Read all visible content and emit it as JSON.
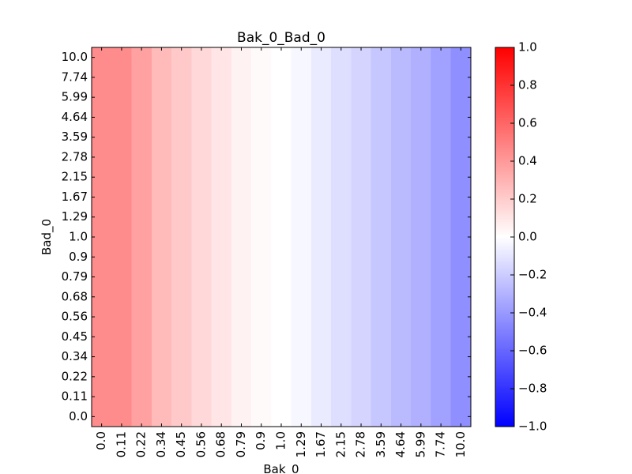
{
  "chart_data": {
    "type": "heatmap",
    "title": "Bak_0_Bad_0",
    "xlabel": "Bak_0",
    "ylabel": "Bad_0",
    "x_categories": [
      "0.0",
      "0.11",
      "0.22",
      "0.34",
      "0.45",
      "0.56",
      "0.68",
      "0.79",
      "0.9",
      "1.0",
      "1.29",
      "1.67",
      "2.15",
      "2.78",
      "3.59",
      "4.64",
      "5.99",
      "7.74",
      "10.0"
    ],
    "y_categories": [
      "0.0",
      "0.11",
      "0.22",
      "0.34",
      "0.45",
      "0.56",
      "0.68",
      "0.79",
      "0.9",
      "1.0",
      "1.29",
      "1.67",
      "2.15",
      "2.78",
      "3.59",
      "4.64",
      "5.99",
      "7.74",
      "10.0"
    ],
    "column_values": [
      0.45,
      0.45,
      0.37,
      0.27,
      0.21,
      0.15,
      0.1,
      0.05,
      0.02,
      0.0,
      -0.03,
      -0.08,
      -0.13,
      -0.17,
      -0.22,
      -0.27,
      -0.31,
      -0.37,
      -0.44
    ],
    "colorbar": {
      "range": [
        -1.0,
        1.0
      ],
      "ticks": [
        "1.0",
        "0.8",
        "0.6",
        "0.4",
        "0.2",
        "0.0",
        "−0.2",
        "−0.4",
        "−0.6",
        "−0.8",
        "−1.0"
      ],
      "tick_values": [
        1.0,
        0.8,
        0.6,
        0.4,
        0.2,
        0.0,
        -0.2,
        -0.4,
        -0.6,
        -0.8,
        -1.0
      ],
      "colormap": "bwr",
      "low_color": "#0000ff",
      "mid_color": "#ffffff",
      "high_color": "#ff0000"
    },
    "grid": false
  }
}
